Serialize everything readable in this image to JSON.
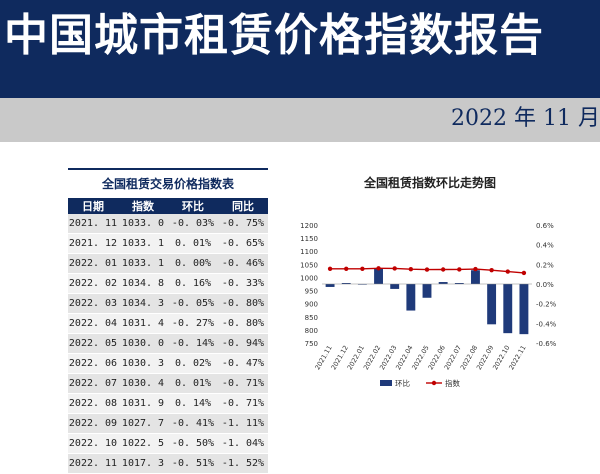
{
  "header": {
    "title": "中国城市租赁价格指数报告",
    "date": "2022 年 11 月"
  },
  "table": {
    "title": "全国租赁交易价格指数表",
    "columns": [
      "日期",
      "指数",
      "环比",
      "同比"
    ],
    "rows": [
      [
        "2021. 11",
        "1033. 0",
        "-0. 03%",
        "-0. 75%"
      ],
      [
        "2021. 12",
        "1033. 1",
        "0. 01%",
        "-0. 65%"
      ],
      [
        "2022. 01",
        "1033. 1",
        "0. 00%",
        "-0. 46%"
      ],
      [
        "2022. 02",
        "1034. 8",
        "0. 16%",
        "-0. 33%"
      ],
      [
        "2022. 03",
        "1034. 3",
        "-0. 05%",
        "-0. 80%"
      ],
      [
        "2022. 04",
        "1031. 4",
        "-0. 27%",
        "-0. 80%"
      ],
      [
        "2022. 05",
        "1030. 0",
        "-0. 14%",
        "-0. 94%"
      ],
      [
        "2022. 06",
        "1030. 3",
        "0. 02%",
        "-0. 47%"
      ],
      [
        "2022. 07",
        "1030. 4",
        "0. 01%",
        "-0. 71%"
      ],
      [
        "2022. 08",
        "1031. 9",
        "0. 14%",
        "-0. 71%"
      ],
      [
        "2022. 09",
        "1027. 7",
        "-0. 41%",
        "-1. 11%"
      ],
      [
        "2022. 10",
        "1022. 5",
        "-0. 50%",
        "-1. 04%"
      ],
      [
        "2022. 11",
        "1017. 3",
        "-0. 51%",
        "-1. 52%"
      ]
    ]
  },
  "chart_data": {
    "type": "bar",
    "title": "全国租赁指数环比走势图",
    "categories": [
      "2021.11",
      "2021.12",
      "2022.01",
      "2022.02",
      "2022.03",
      "2022.04",
      "2022.05",
      "2022.06",
      "2022.07",
      "2022.08",
      "2022.09",
      "2022.10",
      "2022.11"
    ],
    "series": [
      {
        "name": "环比",
        "type": "bar",
        "axis": "right",
        "color": "#1f3a7a",
        "values": [
          -0.03,
          0.01,
          0.0,
          0.16,
          -0.05,
          -0.27,
          -0.14,
          0.02,
          0.01,
          0.14,
          -0.41,
          -0.5,
          -0.51
        ]
      },
      {
        "name": "指数",
        "type": "line",
        "axis": "left",
        "color": "#c00000",
        "values": [
          1033.0,
          1033.1,
          1033.1,
          1034.8,
          1034.3,
          1031.4,
          1030.0,
          1030.3,
          1030.4,
          1031.9,
          1027.7,
          1022.5,
          1017.3
        ]
      }
    ],
    "left_axis": {
      "ylim": [
        750,
        1200
      ],
      "ticks": [
        "750",
        "800",
        "850",
        "900",
        "950",
        "1000",
        "1050",
        "1100",
        "1150",
        "1200"
      ]
    },
    "right_axis": {
      "ylim": [
        -0.6,
        0.6
      ],
      "ticks": [
        "-0.6%",
        "-0.4%",
        "-0.2%",
        "0.0%",
        "0.2%",
        "0.4%",
        "0.6%"
      ]
    },
    "grid": false,
    "legend_position": "bottom"
  }
}
